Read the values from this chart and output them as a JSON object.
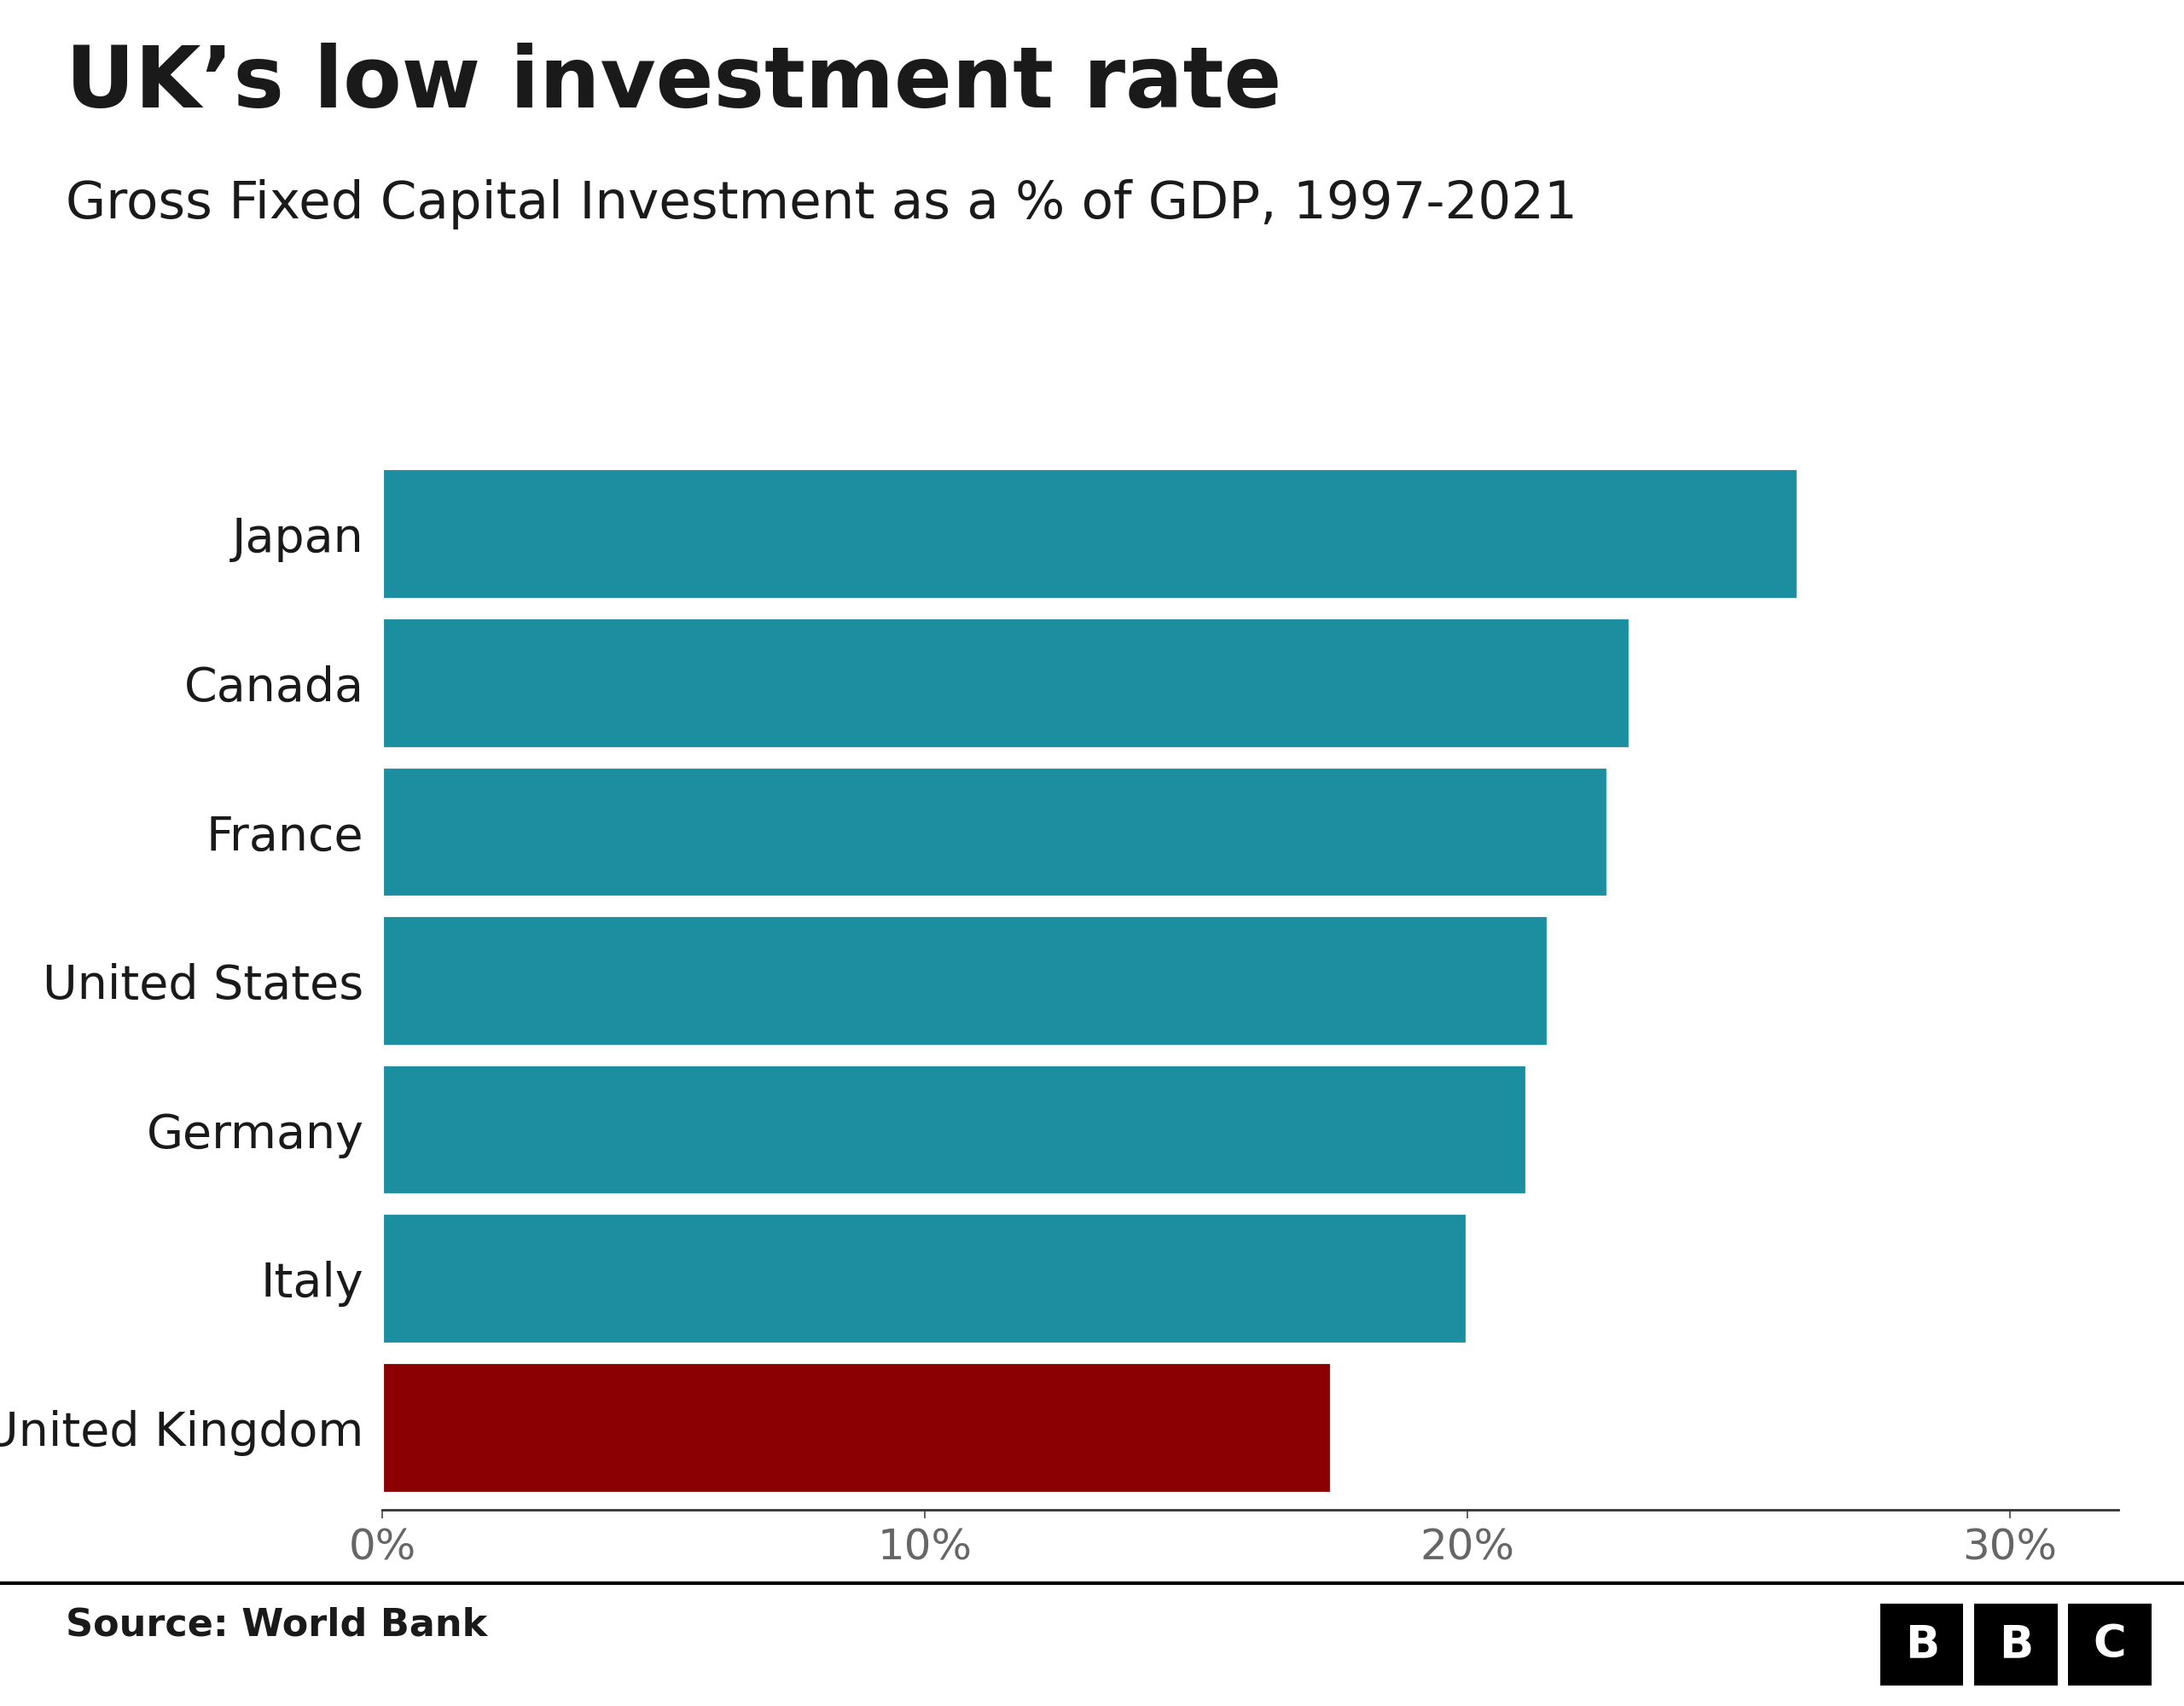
{
  "title": "UK’s low investment rate",
  "subtitle": "Gross Fixed Capital Investment as a % of GDP, 1997-2021",
  "countries": [
    "Japan",
    "Canada",
    "France",
    "United States",
    "Germany",
    "Italy",
    "United Kingdom"
  ],
  "values": [
    26.1,
    23.0,
    22.6,
    21.5,
    21.1,
    20.0,
    17.5
  ],
  "bar_colors": [
    "#1b8fa0",
    "#1b8fa0",
    "#1b8fa0",
    "#1b8fa0",
    "#1b8fa0",
    "#1b8fa0",
    "#8b0000"
  ],
  "background_color": "#ffffff",
  "title_color": "#1a1a1a",
  "subtitle_color": "#1a1a1a",
  "axis_color": "#333333",
  "tick_label_color": "#666666",
  "source_text": "Source: World Bank",
  "xlim": [
    0,
    32
  ],
  "xticks": [
    0,
    10,
    20,
    30
  ],
  "xtick_labels": [
    "0%",
    "10%",
    "20%",
    "30%"
  ],
  "title_fontsize": 72,
  "subtitle_fontsize": 44,
  "tick_fontsize": 36,
  "label_fontsize": 40,
  "source_fontsize": 32,
  "bar_height": 0.88
}
